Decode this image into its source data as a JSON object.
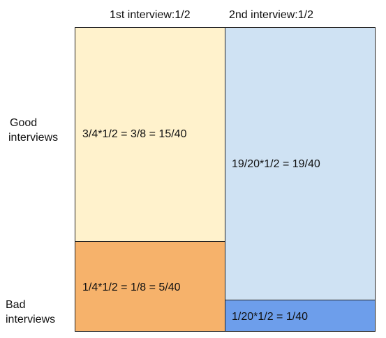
{
  "columns": {
    "first": {
      "header": "1st interview:1/2"
    },
    "second": {
      "header": "2nd interview:1/2"
    }
  },
  "rows": {
    "good": {
      "label_line1": "Good",
      "label_line2": "interviews"
    },
    "bad": {
      "label_line1": "Bad",
      "label_line2": "interviews"
    }
  },
  "cells": {
    "first_good": {
      "text": "3/4*1/2 = 3/8 = 15/40",
      "color": "#fff2cc"
    },
    "first_bad": {
      "text": "1/4*1/2 = 1/8 = 5/40",
      "color": "#f6b26b"
    },
    "second_good": {
      "text": "19/20*1/2 = 19/40",
      "color": "#cfe2f3"
    },
    "second_bad": {
      "text": "1/20*1/2 = 1/40",
      "color": "#6d9eeb"
    }
  }
}
